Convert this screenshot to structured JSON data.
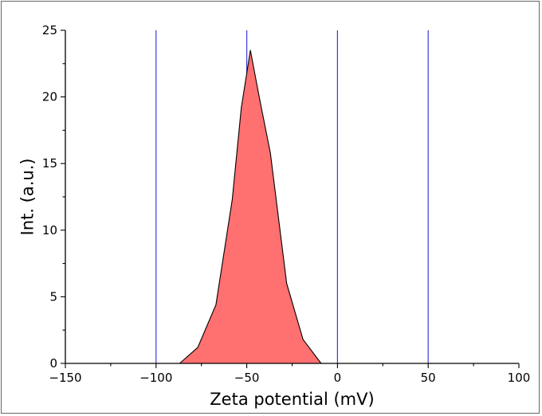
{
  "chart_data": {
    "type": "area",
    "xlabel": "Zeta potential (mV)",
    "ylabel": "Int. (a.u.)",
    "xlim": [
      -150,
      100
    ],
    "ylim": [
      0,
      25
    ],
    "xticks": [
      -150,
      -100,
      -50,
      0,
      50,
      100
    ],
    "yticks": [
      0,
      5,
      10,
      15,
      20,
      25
    ],
    "xtick_labels": [
      "−150",
      "−100",
      "−50",
      "0",
      "50",
      "100"
    ],
    "ytick_labels": [
      "0",
      "5",
      "10",
      "15",
      "20",
      "25"
    ],
    "reference_lines_x": [
      -100,
      -50,
      0,
      50
    ],
    "reference_line_color": "#3b3bdc",
    "fill_color": "#ff7070",
    "line_color": "#000000",
    "grid": false,
    "series": [
      {
        "x": [
          -150,
          -87,
          -77,
          -67,
          -58,
          -53,
          -48,
          -43,
          -37,
          -28,
          -19,
          -9,
          100
        ],
        "values": [
          0,
          0,
          1.2,
          4.4,
          12.3,
          19.2,
          23.5,
          19.9,
          15.8,
          6.0,
          1.8,
          0,
          0
        ]
      }
    ]
  }
}
